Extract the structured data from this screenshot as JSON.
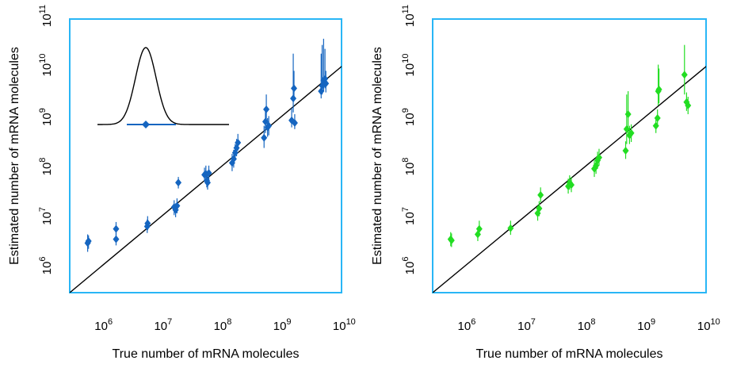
{
  "chart_data": [
    {
      "type": "scatter",
      "xlabel": "True number of mRNA molecules",
      "ylabel": "Estimated number of mRNA molecules",
      "x_scale": "log",
      "y_scale": "log",
      "xlim": [
        300000,
        11000000000
      ],
      "ylim": [
        300000,
        100000000000
      ],
      "x_ticks": [
        {
          "base": "10",
          "exp": "6"
        },
        {
          "base": "10",
          "exp": "7"
        },
        {
          "base": "10",
          "exp": "8"
        },
        {
          "base": "10",
          "exp": "9"
        },
        {
          "base": "10",
          "exp": "10"
        }
      ],
      "y_ticks": [
        {
          "base": "10",
          "exp": "6"
        },
        {
          "base": "10",
          "exp": "7"
        },
        {
          "base": "10",
          "exp": "8"
        },
        {
          "base": "10",
          "exp": "9"
        },
        {
          "base": "10",
          "exp": "10"
        },
        {
          "base": "10",
          "exp": "11"
        }
      ],
      "color": "#1565c0",
      "frame_color": "#29b6f6",
      "diagonal": "y = x",
      "inset": "posterior density with point estimate and interval",
      "series": [
        {
          "points": [
            {
              "x": 600000,
              "y": 3000000,
              "lo": 2000000,
              "hi": 4500000
            },
            {
              "x": 620000,
              "y": 3300000,
              "lo": 2300000,
              "hi": 4300000
            },
            {
              "x": 1800000,
              "y": 3600000,
              "lo": 2700000,
              "hi": 5000000
            },
            {
              "x": 1800000,
              "y": 5800000,
              "lo": 4200000,
              "hi": 8000000
            },
            {
              "x": 6000000,
              "y": 6500000,
              "lo": 4800000,
              "hi": 9000000
            },
            {
              "x": 6100000,
              "y": 7500000,
              "lo": 5500000,
              "hi": 10500000
            },
            {
              "x": 17000000,
              "y": 16000000,
              "lo": 11000000,
              "hi": 22000000
            },
            {
              "x": 18000000,
              "y": 14000000,
              "lo": 10000000,
              "hi": 19000000
            },
            {
              "x": 19000000,
              "y": 17000000,
              "lo": 12000000,
              "hi": 24000000
            },
            {
              "x": 20000000,
              "y": 50000000,
              "lo": 38000000,
              "hi": 65000000
            },
            {
              "x": 55000000,
              "y": 72000000,
              "lo": 52000000,
              "hi": 100000000
            },
            {
              "x": 58000000,
              "y": 75000000,
              "lo": 55000000,
              "hi": 110000000
            },
            {
              "x": 60000000,
              "y": 55000000,
              "lo": 40000000,
              "hi": 76000000
            },
            {
              "x": 62000000,
              "y": 50000000,
              "lo": 36000000,
              "hi": 70000000
            },
            {
              "x": 65000000,
              "y": 78000000,
              "lo": 56000000,
              "hi": 110000000
            },
            {
              "x": 160000000,
              "y": 125000000,
              "lo": 85000000,
              "hi": 190000000
            },
            {
              "x": 170000000,
              "y": 150000000,
              "lo": 100000000,
              "hi": 230000000
            },
            {
              "x": 180000000,
              "y": 200000000,
              "lo": 140000000,
              "hi": 300000000
            },
            {
              "x": 190000000,
              "y": 250000000,
              "lo": 170000000,
              "hi": 380000000
            },
            {
              "x": 200000000,
              "y": 320000000,
              "lo": 220000000,
              "hi": 480000000
            },
            {
              "x": 550000000,
              "y": 400000000,
              "lo": 250000000,
              "hi": 700000000
            },
            {
              "x": 580000000,
              "y": 850000000,
              "lo": 500000000,
              "hi": 1600000000
            },
            {
              "x": 600000000,
              "y": 1500000000,
              "lo": 800000000,
              "hi": 3000000000
            },
            {
              "x": 630000000,
              "y": 650000000,
              "lo": 420000000,
              "hi": 1000000000
            },
            {
              "x": 660000000,
              "y": 700000000,
              "lo": 450000000,
              "hi": 1100000000
            },
            {
              "x": 1600000000,
              "y": 900000000,
              "lo": 650000000,
              "hi": 1600000000
            },
            {
              "x": 1700000000,
              "y": 2500000000,
              "lo": 1300000000,
              "hi": 20000000000
            },
            {
              "x": 1750000000,
              "y": 4000000000,
              "lo": 2200000000,
              "hi": 9000000000
            },
            {
              "x": 1800000000,
              "y": 800000000,
              "lo": 600000000,
              "hi": 1200000000
            },
            {
              "x": 5000000000,
              "y": 3500000000,
              "lo": 2500000000,
              "hi": 20000000000
            },
            {
              "x": 5200000000,
              "y": 4500000000,
              "lo": 3000000000,
              "hi": 30000000000
            },
            {
              "x": 5500000000,
              "y": 5800000000,
              "lo": 3500000000,
              "hi": 40000000000
            },
            {
              "x": 5800000000,
              "y": 6200000000,
              "lo": 4000000000,
              "hi": 25000000000
            },
            {
              "x": 6000000000,
              "y": 5000000000,
              "lo": 3300000000,
              "hi": 9000000000
            }
          ]
        }
      ]
    },
    {
      "type": "scatter",
      "xlabel": "True number of mRNA molecules",
      "ylabel": "Estimated number of mRNA molecules",
      "x_scale": "log",
      "y_scale": "log",
      "xlim": [
        300000,
        11000000000
      ],
      "ylim": [
        300000,
        100000000000
      ],
      "x_ticks": [
        {
          "base": "10",
          "exp": "6"
        },
        {
          "base": "10",
          "exp": "7"
        },
        {
          "base": "10",
          "exp": "8"
        },
        {
          "base": "10",
          "exp": "9"
        },
        {
          "base": "10",
          "exp": "10"
        }
      ],
      "y_ticks": [
        {
          "base": "10",
          "exp": "6"
        },
        {
          "base": "10",
          "exp": "7"
        },
        {
          "base": "10",
          "exp": "8"
        },
        {
          "base": "10",
          "exp": "9"
        },
        {
          "base": "10",
          "exp": "10"
        },
        {
          "base": "10",
          "exp": "11"
        }
      ],
      "color": "#22dd22",
      "frame_color": "#29b6f6",
      "diagonal": "y = x",
      "series": [
        {
          "points": [
            {
              "x": 600000,
              "y": 3600000,
              "lo": 2600000,
              "hi": 5000000
            },
            {
              "x": 620000,
              "y": 3400000,
              "lo": 2500000,
              "hi": 4700000
            },
            {
              "x": 1700000,
              "y": 4500000,
              "lo": 3300000,
              "hi": 6200000
            },
            {
              "x": 1800000,
              "y": 5800000,
              "lo": 4200000,
              "hi": 8500000
            },
            {
              "x": 6000000,
              "y": 6000000,
              "lo": 4400000,
              "hi": 8500000
            },
            {
              "x": 17000000,
              "y": 12000000,
              "lo": 8500000,
              "hi": 17000000
            },
            {
              "x": 18000000,
              "y": 15000000,
              "lo": 10500000,
              "hi": 21000000
            },
            {
              "x": 19000000,
              "y": 28000000,
              "lo": 20000000,
              "hi": 40000000
            },
            {
              "x": 55000000,
              "y": 42000000,
              "lo": 30000000,
              "hi": 60000000
            },
            {
              "x": 58000000,
              "y": 50000000,
              "lo": 36000000,
              "hi": 70000000
            },
            {
              "x": 62000000,
              "y": 45000000,
              "lo": 32000000,
              "hi": 65000000
            },
            {
              "x": 150000000,
              "y": 95000000,
              "lo": 65000000,
              "hi": 140000000
            },
            {
              "x": 160000000,
              "y": 110000000,
              "lo": 75000000,
              "hi": 160000000
            },
            {
              "x": 170000000,
              "y": 140000000,
              "lo": 95000000,
              "hi": 210000000
            },
            {
              "x": 180000000,
              "y": 160000000,
              "lo": 110000000,
              "hi": 240000000
            },
            {
              "x": 500000000,
              "y": 220000000,
              "lo": 150000000,
              "hi": 340000000
            },
            {
              "x": 520000000,
              "y": 600000000,
              "lo": 300000000,
              "hi": 3000000000
            },
            {
              "x": 550000000,
              "y": 1200000000,
              "lo": 500000000,
              "hi": 3500000000
            },
            {
              "x": 580000000,
              "y": 450000000,
              "lo": 300000000,
              "hi": 700000000
            },
            {
              "x": 620000000,
              "y": 500000000,
              "lo": 330000000,
              "hi": 750000000
            },
            {
              "x": 1600000000,
              "y": 700000000,
              "lo": 500000000,
              "hi": 1000000000
            },
            {
              "x": 1700000000,
              "y": 1000000000,
              "lo": 700000000,
              "hi": 1500000000
            },
            {
              "x": 1750000000,
              "y": 3500000000,
              "lo": 1800000000,
              "hi": 12000000000
            },
            {
              "x": 1800000000,
              "y": 3800000000,
              "lo": 2000000000,
              "hi": 10000000000
            },
            {
              "x": 4800000000,
              "y": 7500000000,
              "lo": 3000000000,
              "hi": 30000000000
            },
            {
              "x": 5200000000,
              "y": 2100000000,
              "lo": 1400000000,
              "hi": 3300000000
            },
            {
              "x": 5500000000,
              "y": 1800000000,
              "lo": 1200000000,
              "hi": 2700000000
            }
          ]
        }
      ]
    }
  ]
}
